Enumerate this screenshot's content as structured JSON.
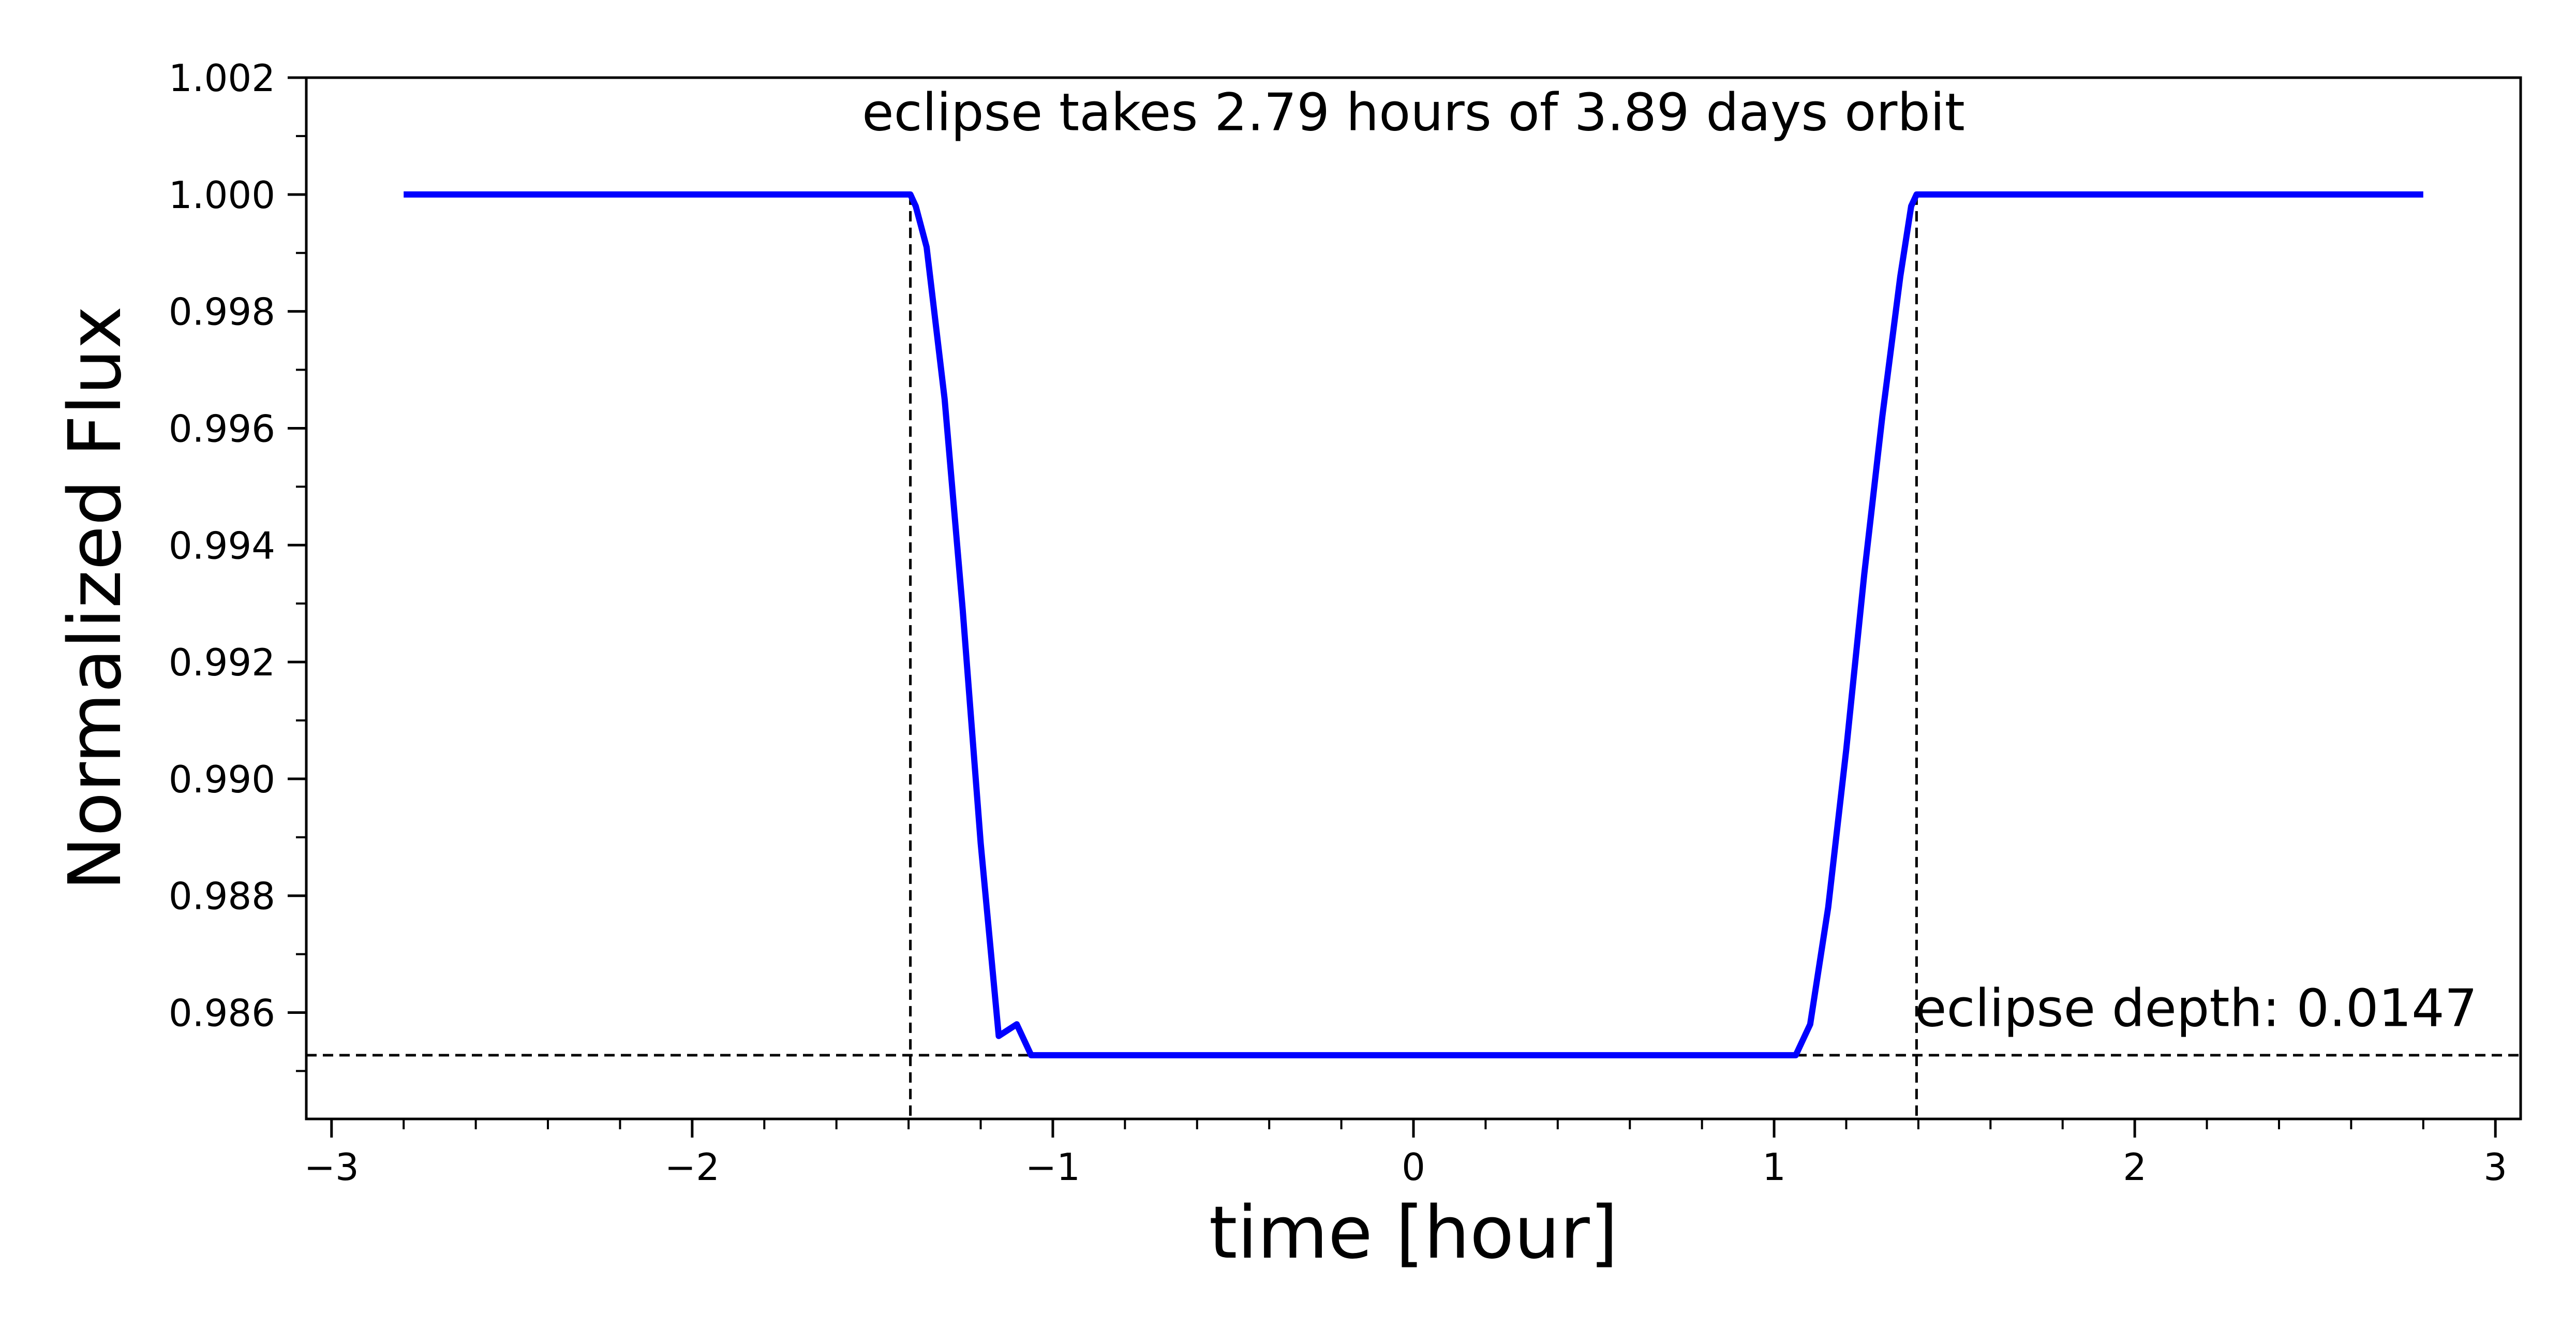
{
  "chart_data": {
    "type": "line",
    "title": "",
    "xlabel": "time [hour]",
    "ylabel": "Normalized Flux",
    "xlim": [
      -3.07,
      3.07
    ],
    "ylim": [
      0.98418,
      1.002
    ],
    "x_ticks": [
      -3,
      -2,
      -1,
      0,
      1,
      2,
      3
    ],
    "x_tick_labels": [
      "−3",
      "−2",
      "−1",
      "0",
      "1",
      "2",
      "3"
    ],
    "x_minor_step": 0.2,
    "y_ticks": [
      1.002,
      1.0,
      0.998,
      0.996,
      0.994,
      0.992,
      0.99,
      0.988,
      0.986
    ],
    "y_tick_labels": [
      "1.002",
      "1.000",
      "0.998",
      "0.996",
      "0.994",
      "0.992",
      "0.990",
      "0.988",
      "0.986"
    ],
    "y_minor_step": 0.001,
    "grid": false,
    "series": [
      {
        "color": "#0000ff",
        "x": [
          -2.8,
          -1.395,
          -1.38,
          -1.35,
          -1.3,
          -1.25,
          -1.2,
          -1.15,
          -1.1,
          -1.06,
          1.06,
          1.1,
          1.15,
          1.2,
          1.25,
          1.3,
          1.35,
          1.38,
          1.395,
          2.8
        ],
        "y": [
          1.0,
          1.0,
          0.9998,
          0.9991,
          0.9965,
          0.9929,
          0.9889,
          0.9856,
          0.9858,
          0.98527,
          0.98527,
          0.9858,
          0.9878,
          0.9905,
          0.9935,
          0.9962,
          0.9986,
          0.9998,
          1.0,
          1.0
        ]
      }
    ],
    "reference_lines": {
      "color": "#000000",
      "vertical_x": [
        -1.395,
        1.395
      ],
      "horizontal_y": [
        0.98527
      ]
    },
    "annotations": [
      {
        "text": "eclipse takes 2.79 hours of 3.89 days orbit",
        "x": 0.0,
        "y": 1.0011
      },
      {
        "text": "eclipse depth: 0.0147",
        "x": 2.95,
        "y": 0.98577
      }
    ]
  }
}
